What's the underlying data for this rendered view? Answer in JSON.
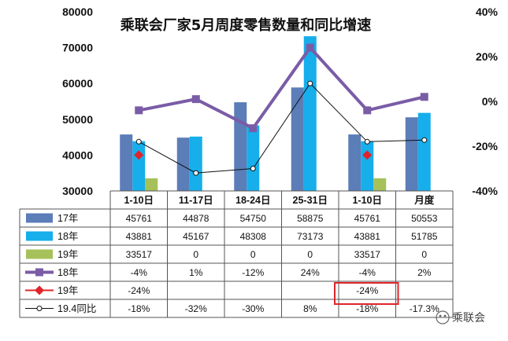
{
  "chart_data": {
    "type": "bar",
    "title": "乘联会厂家5月周度零售数量和同比增速",
    "categories": [
      "1-10日",
      "11-17日",
      "18-24日",
      "25-31日",
      "1-10日",
      "月度"
    ],
    "y_left": {
      "min": 30000,
      "max": 80000,
      "ticks": [
        "30000",
        "40000",
        "50000",
        "60000",
        "70000",
        "80000"
      ]
    },
    "y_right": {
      "min": -40,
      "max": 40,
      "ticks": [
        "-40%",
        "-20%",
        "0%",
        "20%",
        "40%"
      ]
    },
    "bar_series": [
      {
        "name": "17年",
        "color": "#5B7DB8",
        "values": [
          45761,
          44878,
          54750,
          58875,
          45761,
          50553
        ],
        "labels": [
          "45761",
          "44878",
          "54750",
          "58875",
          "45761",
          "50553"
        ]
      },
      {
        "name": "18年",
        "color": "#16AEEB",
        "values": [
          43881,
          45167,
          48308,
          73173,
          43881,
          51785
        ],
        "labels": [
          "43881",
          "45167",
          "48308",
          "73173",
          "43881",
          "51785"
        ]
      },
      {
        "name": "19年",
        "color": "#A6C15A",
        "values": [
          33517,
          0,
          0,
          0,
          33517,
          0
        ],
        "labels": [
          "33517",
          "0",
          "0",
          "0",
          "33517",
          "0"
        ]
      }
    ],
    "line_series": [
      {
        "name": "18年",
        "color": "#7A5CA6",
        "marker": "square",
        "values": [
          -4,
          1,
          -12,
          24,
          -4,
          2
        ],
        "labels": [
          "-4%",
          "1%",
          "-12%",
          "24%",
          "-4%",
          "2%"
        ]
      },
      {
        "name": "19年",
        "color": "#E0242A",
        "marker": "diamond",
        "values": [
          -24,
          null,
          null,
          null,
          -24,
          null
        ],
        "labels": [
          "-24%",
          "",
          "",
          "",
          "-24%",
          ""
        ]
      },
      {
        "name": "19.4同比",
        "color": "#111111",
        "marker": "circle",
        "values": [
          -18,
          -32,
          -30,
          8,
          -18,
          -17.3
        ],
        "labels": [
          "-18%",
          "-32%",
          "-30%",
          "8%",
          "-18%",
          "-17.3%"
        ]
      }
    ],
    "highlight": {
      "row": 4,
      "col": 4,
      "color": "#E0242A"
    }
  },
  "watermark": "乘联会"
}
